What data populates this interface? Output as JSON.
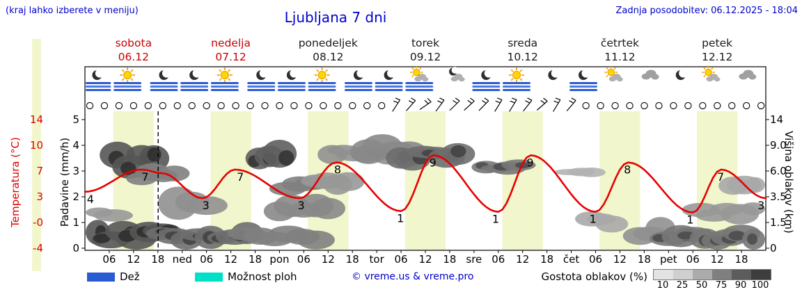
{
  "header": {
    "menu_hint": "(kraj lahko izberete v meniju)",
    "title": "Ljubljana 7 dni",
    "last_update": "Zadnja posodobitev: 06.12.2025 - 18:04"
  },
  "days": [
    {
      "name": "sobota",
      "date": "06.12",
      "highlight": true
    },
    {
      "name": "nedelja",
      "date": "07.12",
      "highlight": true
    },
    {
      "name": "ponedeljek",
      "date": "08.12",
      "highlight": false
    },
    {
      "name": "torek",
      "date": "09.12",
      "highlight": false
    },
    {
      "name": "sreda",
      "date": "10.12",
      "highlight": false
    },
    {
      "name": "četrtek",
      "date": "11.12",
      "highlight": false
    },
    {
      "name": "petek",
      "date": "12.12",
      "highlight": false
    }
  ],
  "axes": {
    "left_temp": {
      "label": "Temperatura (°C)",
      "color": "#dd0000",
      "ticks": [
        "14",
        "10",
        "7",
        "3",
        "-0",
        "-4"
      ]
    },
    "left_precip": {
      "label": "Padavine (mm/h)",
      "ticks": [
        "5",
        "4",
        "3",
        "2",
        "1",
        "0"
      ]
    },
    "right_cloud": {
      "label": "Višina oblakov (km)",
      "ticks": [
        "14",
        "9.0",
        "6.0",
        "3.5",
        "1.5",
        "0"
      ]
    },
    "x_ticks": [
      "06",
      "12",
      "18",
      "ned",
      "06",
      "12",
      "18",
      "pon",
      "06",
      "12",
      "18",
      "tor",
      "06",
      "12",
      "18",
      "sre",
      "06",
      "12",
      "18",
      "čet",
      "06",
      "12",
      "18",
      "pet",
      "06",
      "12",
      "18"
    ]
  },
  "legend": {
    "rain_label": "Dež",
    "rain_color": "#2b5bd2",
    "showers_label": "Možnost ploh",
    "showers_color": "#00e0c8",
    "copyright": "© vreme.us & vreme.pro",
    "cloud_density_label": "Gostota oblakov (%)",
    "cloud_density_steps": [
      {
        "value": "10",
        "color": "#e3e3e3"
      },
      {
        "value": "25",
        "color": "#cfcfcf"
      },
      {
        "value": "50",
        "color": "#ababab"
      },
      {
        "value": "75",
        "color": "#7f7f7f"
      },
      {
        "value": "90",
        "color": "#5c5c5c"
      },
      {
        "value": "100",
        "color": "#3d3d3d"
      }
    ]
  },
  "chart_data": {
    "type": "line",
    "x_unit": "hours from sobota 06.12 00:00",
    "x_range": [
      0,
      168
    ],
    "now_hour": 18.07,
    "day_band": {
      "start_hour": 7,
      "end_hour": 17,
      "color": "#f2f6cc"
    },
    "temperature_series": {
      "name": "Temperatura (°C)",
      "color": "#e60000",
      "points": [
        [
          0,
          3.9
        ],
        [
          14,
          7
        ],
        [
          19,
          6.5
        ],
        [
          29,
          3
        ],
        [
          37,
          7
        ],
        [
          53,
          3
        ],
        [
          62,
          8
        ],
        [
          78,
          1.2
        ],
        [
          86,
          9
        ],
        [
          102,
          1.1
        ],
        [
          110,
          9
        ],
        [
          126,
          1.1
        ],
        [
          134,
          8
        ],
        [
          150,
          1
        ],
        [
          157,
          7
        ],
        [
          168,
          3
        ]
      ]
    },
    "labels": [
      {
        "h": 1,
        "v": 3.9,
        "text": "4"
      },
      {
        "h": 14.5,
        "v": 7,
        "text": "7"
      },
      {
        "h": 29.5,
        "v": 3,
        "text": "3"
      },
      {
        "h": 38,
        "v": 7,
        "text": "7"
      },
      {
        "h": 53,
        "v": 3,
        "text": "3"
      },
      {
        "h": 62,
        "v": 8,
        "text": "8"
      },
      {
        "h": 77.5,
        "v": 1.2,
        "text": "1"
      },
      {
        "h": 85.5,
        "v": 9,
        "text": "9"
      },
      {
        "h": 101,
        "v": 1.1,
        "text": "1"
      },
      {
        "h": 109.5,
        "v": 9,
        "text": "9"
      },
      {
        "h": 125,
        "v": 1.1,
        "text": "1"
      },
      {
        "h": 133.5,
        "v": 8,
        "text": "8"
      },
      {
        "h": 149,
        "v": 1,
        "text": "1"
      },
      {
        "h": 156.5,
        "v": 7,
        "text": "7"
      },
      {
        "h": 166.5,
        "v": 3,
        "text": "3"
      }
    ],
    "y_axes": {
      "temperature_ticks_c": [
        14,
        10,
        7,
        3,
        0,
        -4
      ],
      "precipitation_ticks_mmh": [
        5,
        4,
        3,
        2,
        1,
        0
      ],
      "cloud_height_ticks_km": [
        14,
        9,
        6,
        3.5,
        1.5,
        0
      ]
    },
    "cloud_areas": [
      [
        0,
        19,
        0,
        1.5,
        0.85
      ],
      [
        0,
        7,
        1.6,
        2.7,
        0.45
      ],
      [
        19,
        40,
        0,
        1.3,
        0.7
      ],
      [
        40,
        57,
        0,
        1.2,
        0.6
      ],
      [
        8,
        17,
        5.5,
        9,
        0.85
      ],
      [
        14,
        22,
        4.5,
        6.8,
        0.6
      ],
      [
        23,
        30,
        1.8,
        4.5,
        0.5
      ],
      [
        43,
        48,
        6,
        9.5,
        0.8
      ],
      [
        48,
        60,
        1.5,
        3.4,
        0.55
      ],
      [
        50,
        56,
        3.8,
        5.3,
        0.6
      ],
      [
        57,
        65,
        4,
        6,
        0.45
      ],
      [
        61,
        75,
        7,
        9.4,
        0.5
      ],
      [
        70,
        80,
        7,
        10.5,
        0.55
      ],
      [
        78,
        92,
        6.5,
        9,
        0.7
      ],
      [
        99,
        107,
        5.8,
        7.4,
        0.65
      ],
      [
        120,
        125,
        5.6,
        6.6,
        0.3
      ],
      [
        125,
        130,
        1,
        2.2,
        0.35
      ],
      [
        137,
        142,
        0.3,
        1.6,
        0.5
      ],
      [
        144,
        168,
        0,
        1.4,
        0.65
      ],
      [
        152,
        168,
        1.5,
        3.1,
        0.45
      ],
      [
        160,
        168,
        3.4,
        5.6,
        0.35
      ]
    ],
    "icons": [
      {
        "h": 3,
        "type": "moon",
        "rain": true
      },
      {
        "h": 10.5,
        "type": "sun",
        "rain": true
      },
      {
        "h": 19.5,
        "type": "moon",
        "rain": true
      },
      {
        "h": 27,
        "type": "moon",
        "rain": true
      },
      {
        "h": 34.5,
        "type": "sun",
        "rain": true
      },
      {
        "h": 43.5,
        "type": "moon",
        "rain": true
      },
      {
        "h": 51,
        "type": "moon",
        "rain": true
      },
      {
        "h": 58.5,
        "type": "sun",
        "rain": true
      },
      {
        "h": 67.5,
        "type": "moon",
        "rain": true
      },
      {
        "h": 75,
        "type": "moon",
        "rain": true
      },
      {
        "h": 82.5,
        "type": "suncloud",
        "rain": true
      },
      {
        "h": 91.5,
        "type": "mooncloud",
        "rain": false
      },
      {
        "h": 99,
        "type": "moon",
        "rain": true
      },
      {
        "h": 106.5,
        "type": "sun",
        "rain": true
      },
      {
        "h": 115.5,
        "type": "moon",
        "rain": false
      },
      {
        "h": 123,
        "type": "moon",
        "rain": true
      },
      {
        "h": 130.5,
        "type": "suncloud",
        "rain": false
      },
      {
        "h": 139.5,
        "type": "cloud",
        "rain": false
      },
      {
        "h": 147,
        "type": "moon",
        "rain": false
      },
      {
        "h": 154.5,
        "type": "suncloud",
        "rain": false
      },
      {
        "h": 163.5,
        "type": "cloud",
        "rain": false
      }
    ],
    "wind_row": {
      "symbols": "ooooooooooooooooooooobbbbbbbbbbbbbooooooooooooo"
    }
  }
}
